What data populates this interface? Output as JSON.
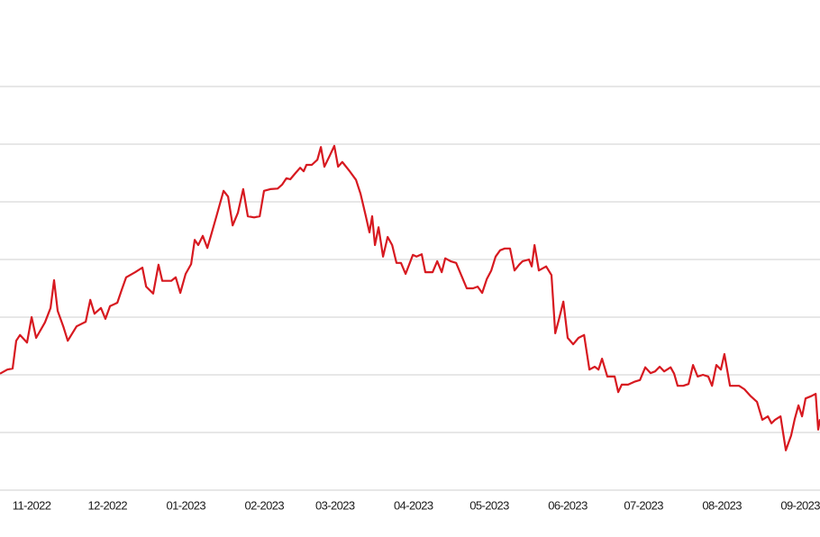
{
  "chart_data": {
    "type": "line",
    "series": [
      {
        "color": "#d71920",
        "x": [
          -12.5,
          -9.6,
          -7.5,
          -6.1,
          -4.6,
          -1.8,
          0,
          1.8,
          5.3,
          7.5,
          8.9,
          10.3,
          12.5,
          14.3,
          17.8,
          21.4,
          23.2,
          24.9,
          27.4,
          29.2,
          31.0,
          33.9,
          35.6,
          37.4,
          41.0,
          43.8,
          45.3,
          48.1,
          50.2,
          51.7,
          55.2,
          57.0,
          58.8,
          60.9,
          63.1,
          64.5,
          65.9,
          67.7,
          69.5,
          70.9,
          73.1,
          75.9,
          77.7,
          79.5,
          81.6,
          83.7,
          85.5,
          88.0,
          90.2,
          91.9,
          94.4,
          97.3,
          99.1,
          100.8,
          102.3,
          104.4,
          106.2,
          107.6,
          108.7,
          110.8,
          113.0,
          114.4,
          115.8,
          118.0,
          119.7,
          121.2,
          122.9,
          125.8,
          128.3,
          130.1,
          132.2,
          133.6,
          134.7,
          135.8,
          137.2,
          139.0,
          140.8,
          142.6,
          144.3,
          146.1,
          147.9,
          150.8,
          152.2,
          154.3,
          155.7,
          158.6,
          160.4,
          162.2,
          163.6,
          165.7,
          167.9,
          170.0,
          172.1,
          174.6,
          176.4,
          178.2,
          180.0,
          181.8,
          183.5,
          185.3,
          187.1,
          189.2,
          191.0,
          192.8,
          194.2,
          196.7,
          197.8,
          198.9,
          200.6,
          203.5,
          205.6,
          207.1,
          208.5,
          210.3,
          212.0,
          214.2,
          216.3,
          218.5,
          220.6,
          222.7,
          224.2,
          225.6,
          227.7,
          230.6,
          232.0,
          233.4,
          235.9,
          238.4,
          240.6,
          242.7,
          244.8,
          246.6,
          248.4,
          250.2,
          252.7,
          254.1,
          255.5,
          257.7,
          259.8,
          261.6,
          263.4,
          265.5,
          267.6,
          269.1,
          270.8,
          272.6,
          274.0,
          276.2,
          279.8,
          281.9,
          284.4,
          286.9,
          289.0,
          291.2,
          292.6,
          294.0,
          296.2,
          298.3,
          300.4,
          301.8,
          303.3,
          304.7,
          306.1,
          308.3,
          310.1,
          311.1,
          311.8
        ],
        "values": [
          2.02,
          2.09,
          2.11,
          2.59,
          2.69,
          2.56,
          3.0,
          2.64,
          2.91,
          3.16,
          3.64,
          3.11,
          2.84,
          2.59,
          2.84,
          2.92,
          3.3,
          3.06,
          3.16,
          2.97,
          3.19,
          3.25,
          3.47,
          3.69,
          3.78,
          3.86,
          3.53,
          3.41,
          3.91,
          3.63,
          3.63,
          3.69,
          3.42,
          3.75,
          3.92,
          4.34,
          4.25,
          4.41,
          4.2,
          4.41,
          4.75,
          5.19,
          5.09,
          4.59,
          4.81,
          5.22,
          4.75,
          4.73,
          4.75,
          5.19,
          5.22,
          5.23,
          5.3,
          5.41,
          5.39,
          5.5,
          5.59,
          5.53,
          5.64,
          5.64,
          5.73,
          5.95,
          5.61,
          5.81,
          5.97,
          5.61,
          5.69,
          5.53,
          5.38,
          5.14,
          4.75,
          4.47,
          4.75,
          4.25,
          4.56,
          4.05,
          4.39,
          4.25,
          3.94,
          3.94,
          3.75,
          4.08,
          4.05,
          4.09,
          3.78,
          3.78,
          3.97,
          3.78,
          4.02,
          3.97,
          3.94,
          3.72,
          3.5,
          3.5,
          3.53,
          3.42,
          3.66,
          3.81,
          4.05,
          4.16,
          4.19,
          4.19,
          3.81,
          3.91,
          3.97,
          4.0,
          3.88,
          4.25,
          3.81,
          3.88,
          3.73,
          2.72,
          2.95,
          3.27,
          2.64,
          2.53,
          2.64,
          2.69,
          2.09,
          2.14,
          2.09,
          2.28,
          1.97,
          1.97,
          1.7,
          1.83,
          1.83,
          1.88,
          1.91,
          2.13,
          2.03,
          2.06,
          2.14,
          2.06,
          2.13,
          2.02,
          1.81,
          1.81,
          1.84,
          2.17,
          1.97,
          2.0,
          1.97,
          1.81,
          2.17,
          2.09,
          2.36,
          1.81,
          1.81,
          1.75,
          1.63,
          1.53,
          1.22,
          1.28,
          1.16,
          1.22,
          1.28,
          0.69,
          0.95,
          1.23,
          1.47,
          1.28,
          1.59,
          1.63,
          1.67,
          1.05,
          1.23
        ]
      }
    ],
    "xlim": [
      -12.5,
      311.8
    ],
    "xticks": [
      {
        "value": 0,
        "label": "11-2022"
      },
      {
        "value": 30,
        "label": "12-2022"
      },
      {
        "value": 61,
        "label": "01-2023"
      },
      {
        "value": 92,
        "label": "02-2023"
      },
      {
        "value": 120,
        "label": "03-2023"
      },
      {
        "value": 151,
        "label": "04-2023"
      },
      {
        "value": 181,
        "label": "05-2023"
      },
      {
        "value": 212,
        "label": "06-2023"
      },
      {
        "value": 242,
        "label": "07-2023"
      },
      {
        "value": 273,
        "label": "08-2023"
      },
      {
        "value": 304,
        "label": "09-2023"
      }
    ],
    "ylim": [
      0,
      8.5
    ],
    "yticks": [
      0,
      1,
      2,
      3,
      4,
      5,
      6,
      7
    ],
    "grid": true
  }
}
